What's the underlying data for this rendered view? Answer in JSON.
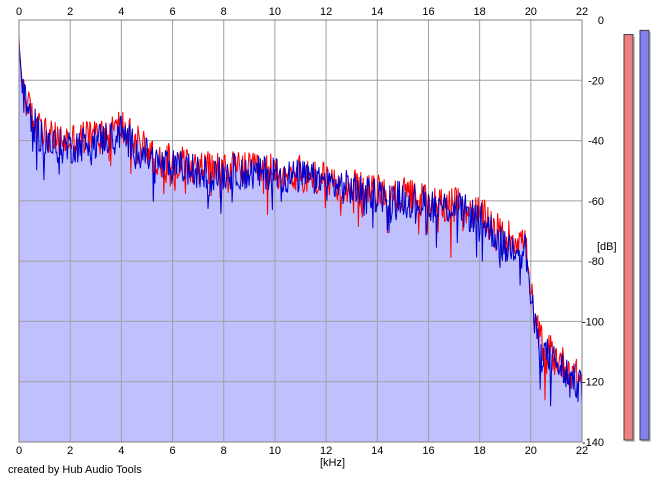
{
  "chart_data": {
    "type": "area",
    "title": "",
    "xlabel": "[kHz]",
    "ylabel": "[dB]",
    "xlim": [
      0,
      22
    ],
    "ylim": [
      -140,
      0
    ],
    "x_ticks": [
      0,
      2,
      4,
      6,
      8,
      10,
      12,
      14,
      16,
      18,
      20,
      22
    ],
    "y_ticks": [
      0,
      -20,
      -40,
      -60,
      -80,
      -100,
      -120,
      -140
    ],
    "y_tick_labels": [
      "0",
      "-20",
      "-40",
      "-60",
      "-80",
      "-100",
      "-120",
      "-140"
    ],
    "grid": true,
    "colors": {
      "left_channel": "#ff0000",
      "right_channel": "#0000cc",
      "fill": "#c0c0ff",
      "grid": "#a0a0a0",
      "meter_left": "#f08080",
      "meter_right": "#8080f0"
    },
    "series": [
      {
        "x": [
          0,
          0.1,
          0.2,
          0.4,
          0.6,
          0.8,
          1.0,
          1.2,
          1.5,
          2.0,
          2.5,
          3.0,
          3.5,
          4.0,
          4.5,
          5.0,
          5.5,
          6.0,
          6.5,
          7.0,
          7.5,
          8.0,
          8.5,
          9.0,
          9.5,
          10.0,
          10.5,
          11.0,
          11.5,
          12.0,
          12.5,
          13.0,
          13.5,
          14.0,
          14.5,
          15.0,
          15.5,
          16.0,
          16.5,
          17.0,
          17.5,
          18.0,
          18.5,
          19.0,
          19.5,
          19.8,
          20.0,
          20.2,
          20.5,
          21.0,
          21.5,
          22.0
        ],
        "values": [
          -10,
          -18,
          -24,
          -30,
          -33,
          -36,
          -37,
          -39,
          -40,
          -40,
          -39,
          -38,
          -37,
          -35,
          -40,
          -43,
          -46,
          -47,
          -47,
          -49,
          -49,
          -50,
          -49,
          -50,
          -50,
          -50,
          -51,
          -51,
          -52,
          -53,
          -54,
          -55,
          -57,
          -57,
          -58,
          -58,
          -59,
          -60,
          -61,
          -61,
          -63,
          -64,
          -68,
          -72,
          -72,
          -74,
          -90,
          -102,
          -108,
          -112,
          -116,
          -120
        ]
      },
      {
        "x": [
          0,
          0.1,
          0.2,
          0.4,
          0.6,
          0.8,
          1.0,
          1.2,
          1.5,
          2.0,
          2.5,
          3.0,
          3.5,
          4.0,
          4.5,
          5.0,
          5.5,
          6.0,
          6.5,
          7.0,
          7.5,
          8.0,
          8.5,
          9.0,
          9.5,
          10.0,
          10.5,
          11.0,
          11.5,
          12.0,
          12.5,
          13.0,
          13.5,
          14.0,
          14.5,
          15.0,
          15.5,
          16.0,
          16.5,
          17.0,
          17.5,
          18.0,
          18.5,
          19.0,
          19.5,
          19.8,
          20.0,
          20.2,
          20.5,
          21.0,
          21.5,
          22.0
        ],
        "values": [
          -9,
          -19,
          -26,
          -32,
          -35,
          -38,
          -39,
          -41,
          -42,
          -42,
          -41,
          -40,
          -39,
          -37,
          -42,
          -45,
          -48,
          -49,
          -49,
          -51,
          -51,
          -51,
          -50,
          -51,
          -51,
          -50,
          -52,
          -52,
          -53,
          -54,
          -55,
          -56,
          -57,
          -58,
          -58,
          -59,
          -60,
          -61,
          -62,
          -62,
          -64,
          -66,
          -70,
          -76,
          -74,
          -76,
          -92,
          -104,
          -110,
          -114,
          -118,
          -123
        ]
      }
    ],
    "noise_amplitude_db": 6,
    "meters": [
      {
        "level": 0.97
      },
      {
        "level": 0.98
      }
    ]
  },
  "footer": {
    "credit": "created by Hub Audio Tools"
  }
}
